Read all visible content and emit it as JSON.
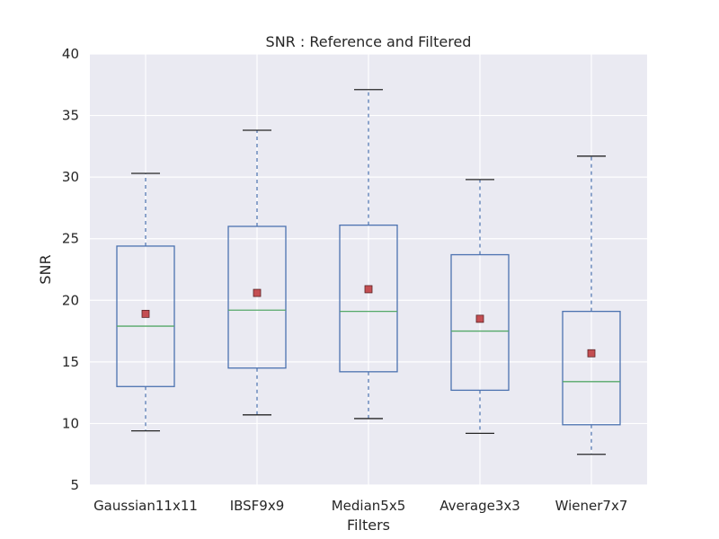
{
  "chart_data": {
    "type": "boxplot",
    "title": "SNR :  Reference and Filtered",
    "xlabel": "Filters",
    "ylabel": "SNR",
    "ylim": [
      5,
      40
    ],
    "yticks": [
      "5",
      "10",
      "15",
      "20",
      "25",
      "30",
      "35",
      "40"
    ],
    "grid": true,
    "categories": [
      "Gaussian11x11",
      "IBSF9x9",
      "Median5x5",
      "Average3x3",
      "Wiener7x7"
    ],
    "boxes": [
      {
        "category": "Gaussian11x11",
        "whisker_low": 9.4,
        "q1": 13.0,
        "median": 17.9,
        "q3": 24.4,
        "whisker_high": 30.3,
        "mean": 18.9
      },
      {
        "category": "IBSF9x9",
        "whisker_low": 10.7,
        "q1": 14.5,
        "median": 19.2,
        "q3": 26.0,
        "whisker_high": 33.8,
        "mean": 20.6
      },
      {
        "category": "Median5x5",
        "whisker_low": 10.4,
        "q1": 14.2,
        "median": 19.1,
        "q3": 26.1,
        "whisker_high": 37.1,
        "mean": 20.9
      },
      {
        "category": "Average3x3",
        "whisker_low": 9.2,
        "q1": 12.7,
        "median": 17.5,
        "q3": 23.7,
        "whisker_high": 29.8,
        "mean": 18.5
      },
      {
        "category": "Wiener7x7",
        "whisker_low": 7.5,
        "q1": 9.9,
        "median": 13.4,
        "q3": 19.1,
        "whisker_high": 31.7,
        "mean": 15.7
      }
    ],
    "colors": {
      "plot_background": "#eaeaf2",
      "grid": "#ffffff",
      "box": "#4c72b0",
      "median": "#55a868",
      "mean_marker": "#c44e52",
      "cap": "#262626"
    }
  }
}
